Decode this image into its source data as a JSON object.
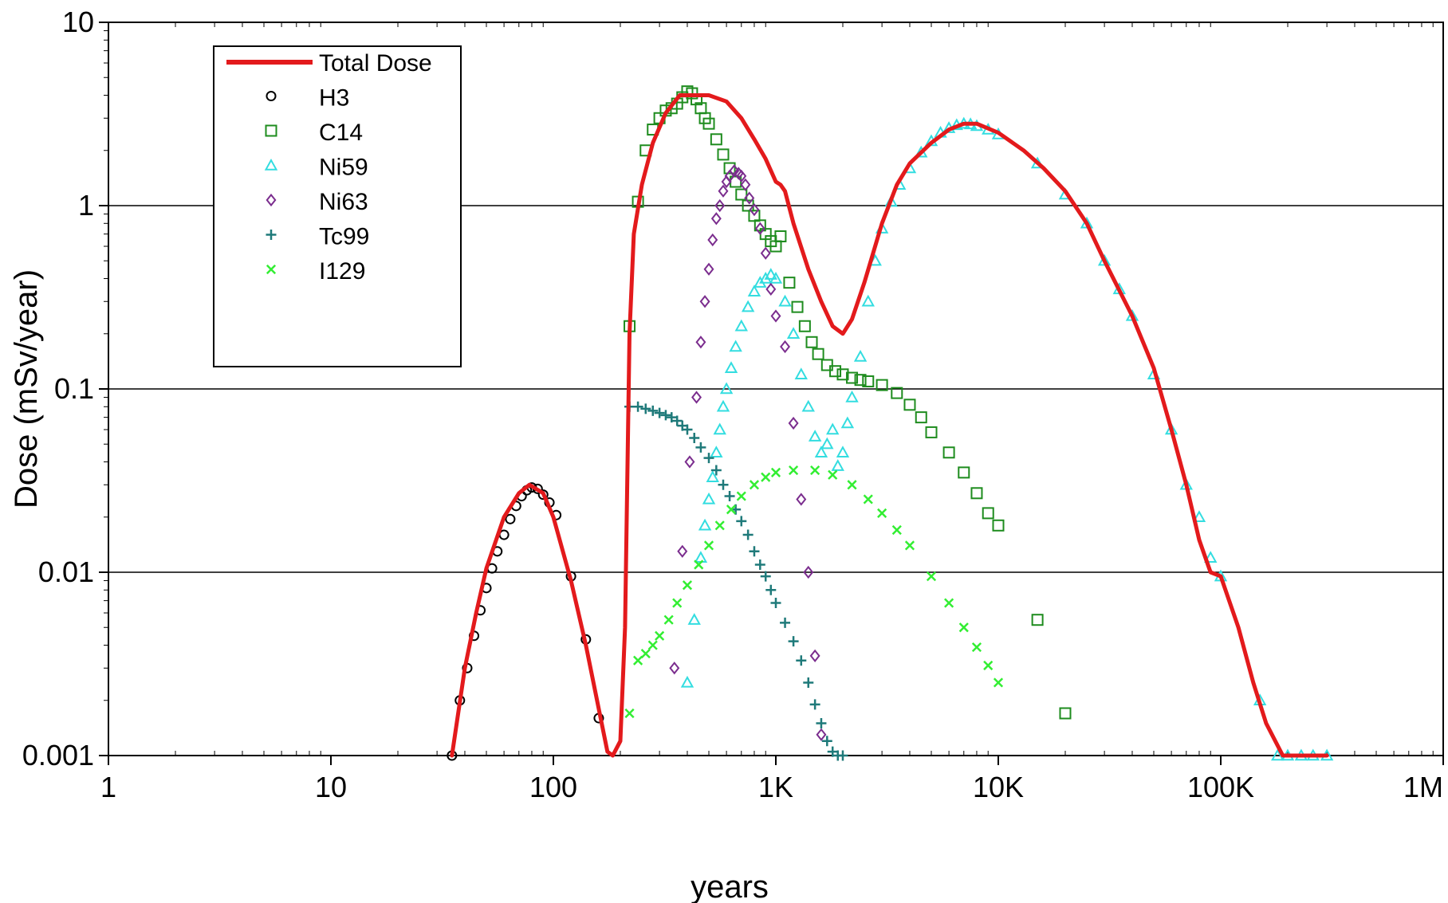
{
  "chart_data": {
    "type": "scatter",
    "title": "",
    "xlabel": "years",
    "ylabel": "Dose  (mSv/year)",
    "xscale": "log",
    "yscale": "log",
    "xlim": [
      1,
      1000000
    ],
    "ylim": [
      0.001,
      10
    ],
    "x_tick_labels": [
      "1",
      "10",
      "100",
      "1K",
      "10K",
      "100K",
      "1M"
    ],
    "y_tick_labels": [
      "0.001",
      "0.01",
      "0.1",
      "1",
      "10"
    ],
    "grid": "horizontal major lines",
    "legend_position": "top-left",
    "series": [
      {
        "name": "Total Dose",
        "marker": "line",
        "color": "#e31a1c",
        "x": [
          35,
          40,
          45,
          50,
          60,
          70,
          78,
          90,
          100,
          120,
          140,
          160,
          175,
          185,
          200,
          210,
          220,
          230,
          250,
          280,
          320,
          370,
          420,
          500,
          600,
          700,
          800,
          900,
          1000,
          1050,
          1100,
          1200,
          1400,
          1600,
          1800,
          2000,
          2200,
          2500,
          3000,
          3500,
          4000,
          5000,
          6000,
          7000,
          8000,
          10000,
          13000,
          16000,
          20000,
          25000,
          30000,
          40000,
          50000,
          60000,
          70000,
          80000,
          90000,
          100000,
          120000,
          140000,
          160000,
          190000,
          230000,
          300000
        ],
        "y": [
          0.001,
          0.003,
          0.006,
          0.0105,
          0.02,
          0.027,
          0.03,
          0.027,
          0.02,
          0.009,
          0.004,
          0.0018,
          0.00105,
          0.001,
          0.0012,
          0.005,
          0.2,
          0.7,
          1.3,
          2.2,
          3.2,
          4.0,
          4.0,
          4.0,
          3.7,
          3.0,
          2.3,
          1.8,
          1.35,
          1.3,
          1.2,
          0.8,
          0.45,
          0.3,
          0.22,
          0.2,
          0.24,
          0.38,
          0.8,
          1.3,
          1.7,
          2.2,
          2.6,
          2.8,
          2.8,
          2.5,
          2.0,
          1.6,
          1.2,
          0.8,
          0.5,
          0.25,
          0.13,
          0.06,
          0.03,
          0.015,
          0.01,
          0.0095,
          0.005,
          0.0025,
          0.0015,
          0.001,
          0.001,
          0.001
        ]
      },
      {
        "name": "H3",
        "marker": "circle",
        "color": "#000000",
        "x": [
          35,
          38,
          41,
          44,
          47,
          50,
          53,
          56,
          60,
          64,
          68,
          72,
          76,
          80,
          85,
          90,
          96,
          103,
          120,
          140,
          160
        ],
        "y": [
          0.001,
          0.002,
          0.003,
          0.0045,
          0.0062,
          0.0082,
          0.0105,
          0.013,
          0.016,
          0.0195,
          0.023,
          0.026,
          0.028,
          0.029,
          0.0285,
          0.0265,
          0.024,
          0.0205,
          0.0095,
          0.0043,
          0.0016
        ]
      },
      {
        "name": "C14",
        "marker": "square",
        "color": "#1e8c1e",
        "x": [
          220,
          240,
          260,
          280,
          300,
          320,
          340,
          360,
          380,
          400,
          420,
          440,
          460,
          480,
          500,
          540,
          580,
          620,
          660,
          700,
          750,
          800,
          850,
          900,
          950,
          1000,
          1050,
          1150,
          1250,
          1350,
          1450,
          1550,
          1700,
          1850,
          2000,
          2200,
          2400,
          2600,
          3000,
          3500,
          4000,
          4500,
          5000,
          6000,
          7000,
          8000,
          9000,
          10000,
          15000,
          20000
        ],
        "y": [
          0.22,
          1.05,
          2.0,
          2.6,
          3.0,
          3.3,
          3.4,
          3.6,
          3.9,
          4.2,
          4.1,
          3.8,
          3.4,
          3.0,
          2.8,
          2.3,
          1.9,
          1.6,
          1.35,
          1.15,
          1.0,
          0.88,
          0.78,
          0.7,
          0.64,
          0.6,
          0.68,
          0.38,
          0.28,
          0.22,
          0.18,
          0.155,
          0.135,
          0.125,
          0.12,
          0.115,
          0.112,
          0.11,
          0.105,
          0.095,
          0.082,
          0.07,
          0.058,
          0.045,
          0.035,
          0.027,
          0.021,
          0.018,
          0.0055,
          0.0017
        ]
      },
      {
        "name": "Ni59",
        "marker": "triangle",
        "color": "#33dde0",
        "x": [
          400,
          430,
          460,
          480,
          500,
          520,
          540,
          560,
          580,
          600,
          630,
          660,
          700,
          750,
          800,
          850,
          900,
          950,
          1000,
          1100,
          1200,
          1300,
          1400,
          1500,
          1600,
          1700,
          1800,
          1900,
          2000,
          2100,
          2200,
          2400,
          2600,
          2800,
          3000,
          3300,
          3600,
          4000,
          4500,
          5000,
          5500,
          6000,
          6500,
          7000,
          7500,
          8000,
          9000,
          10000,
          15000,
          20000,
          25000,
          30000,
          35000,
          40000,
          50000,
          60000,
          70000,
          80000,
          90000,
          100000,
          150000,
          180000,
          200000,
          230000,
          260000,
          300000
        ],
        "y": [
          0.0025,
          0.0055,
          0.012,
          0.018,
          0.025,
          0.033,
          0.045,
          0.06,
          0.08,
          0.1,
          0.13,
          0.17,
          0.22,
          0.28,
          0.34,
          0.38,
          0.4,
          0.42,
          0.4,
          0.3,
          0.2,
          0.12,
          0.08,
          0.055,
          0.045,
          0.05,
          0.06,
          0.038,
          0.045,
          0.065,
          0.09,
          0.15,
          0.3,
          0.5,
          0.75,
          1.05,
          1.3,
          1.6,
          1.95,
          2.25,
          2.5,
          2.65,
          2.75,
          2.8,
          2.78,
          2.72,
          2.6,
          2.45,
          1.7,
          1.15,
          0.8,
          0.5,
          0.35,
          0.25,
          0.12,
          0.06,
          0.03,
          0.02,
          0.012,
          0.0095,
          0.002,
          0.001,
          0.001,
          0.001,
          0.001,
          0.001
        ]
      },
      {
        "name": "Ni63",
        "marker": "diamond",
        "color": "#7b2d8e",
        "x": [
          350,
          380,
          410,
          440,
          460,
          480,
          500,
          520,
          540,
          560,
          580,
          600,
          620,
          650,
          680,
          700,
          730,
          760,
          800,
          850,
          900,
          950,
          1000,
          1100,
          1200,
          1300,
          1400,
          1500,
          1600
        ],
        "y": [
          0.003,
          0.013,
          0.04,
          0.09,
          0.18,
          0.3,
          0.45,
          0.65,
          0.85,
          1.0,
          1.2,
          1.35,
          1.45,
          1.55,
          1.5,
          1.45,
          1.3,
          1.1,
          0.95,
          0.75,
          0.55,
          0.35,
          0.25,
          0.17,
          0.065,
          0.025,
          0.01,
          0.0035,
          0.0013
        ]
      },
      {
        "name": "Tc99",
        "marker": "plus",
        "color": "#1f7a7a",
        "x": [
          220,
          240,
          260,
          280,
          300,
          320,
          340,
          360,
          380,
          400,
          430,
          460,
          500,
          540,
          580,
          620,
          660,
          700,
          750,
          800,
          850,
          900,
          950,
          1000,
          1100,
          1200,
          1300,
          1400,
          1500,
          1600,
          1700,
          1800,
          1900,
          2000
        ],
        "y": [
          0.08,
          0.08,
          0.078,
          0.076,
          0.074,
          0.072,
          0.07,
          0.067,
          0.063,
          0.06,
          0.054,
          0.048,
          0.042,
          0.036,
          0.03,
          0.026,
          0.022,
          0.019,
          0.016,
          0.013,
          0.011,
          0.0095,
          0.008,
          0.0068,
          0.0053,
          0.0042,
          0.0033,
          0.0025,
          0.0019,
          0.0015,
          0.0012,
          0.00105,
          0.001,
          0.001
        ]
      },
      {
        "name": "I129",
        "marker": "x",
        "color": "#33ee33",
        "x": [
          220,
          240,
          260,
          280,
          300,
          330,
          360,
          400,
          450,
          500,
          560,
          630,
          700,
          800,
          900,
          1000,
          1200,
          1500,
          1800,
          2200,
          2600,
          3000,
          3500,
          4000,
          5000,
          6000,
          7000,
          8000,
          9000,
          10000
        ],
        "y": [
          0.0017,
          0.0033,
          0.0036,
          0.004,
          0.0045,
          0.0055,
          0.0068,
          0.0085,
          0.011,
          0.014,
          0.018,
          0.022,
          0.026,
          0.03,
          0.033,
          0.035,
          0.036,
          0.036,
          0.034,
          0.03,
          0.025,
          0.021,
          0.017,
          0.014,
          0.0095,
          0.0068,
          0.005,
          0.0039,
          0.0031,
          0.0025
        ]
      }
    ]
  }
}
